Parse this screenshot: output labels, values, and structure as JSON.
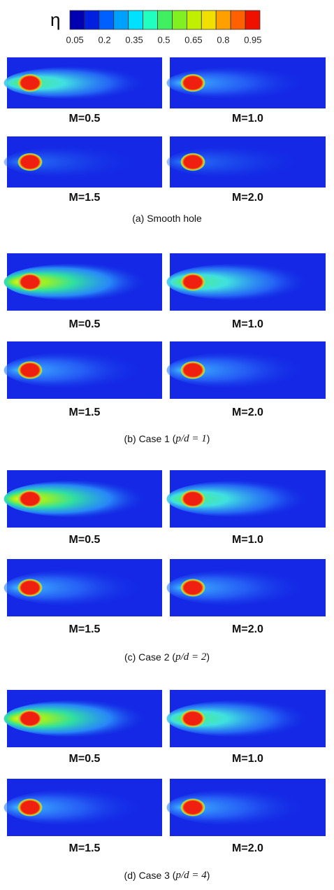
{
  "colorbar": {
    "label": "η",
    "ticks": [
      0.05,
      0.2,
      0.35,
      0.5,
      0.65,
      0.8,
      0.95
    ]
  },
  "figures": [
    {
      "panels": [
        "M=0.5",
        "M=1.0",
        "M=1.5",
        "M=2.0"
      ],
      "caption": {
        "label": "(a)",
        "text": "Smooth hole"
      }
    },
    {
      "panels": [
        "M=0.5",
        "M=1.0",
        "M=1.5",
        "M=2.0"
      ],
      "caption": {
        "label": "(b)",
        "text": "Case 1",
        "math": "p/d = 1"
      }
    },
    {
      "panels": [
        "M=0.5",
        "M=1.0",
        "M=1.5",
        "M=2.0"
      ],
      "caption": {
        "label": "(c)",
        "text": "Case 2",
        "math": "p/d = 2"
      }
    },
    {
      "panels": [
        "M=0.5",
        "M=1.0",
        "M=1.5",
        "M=2.0"
      ],
      "caption": {
        "label": "(d)",
        "text": "Case 3",
        "math": "p/d = 4"
      }
    }
  ]
}
